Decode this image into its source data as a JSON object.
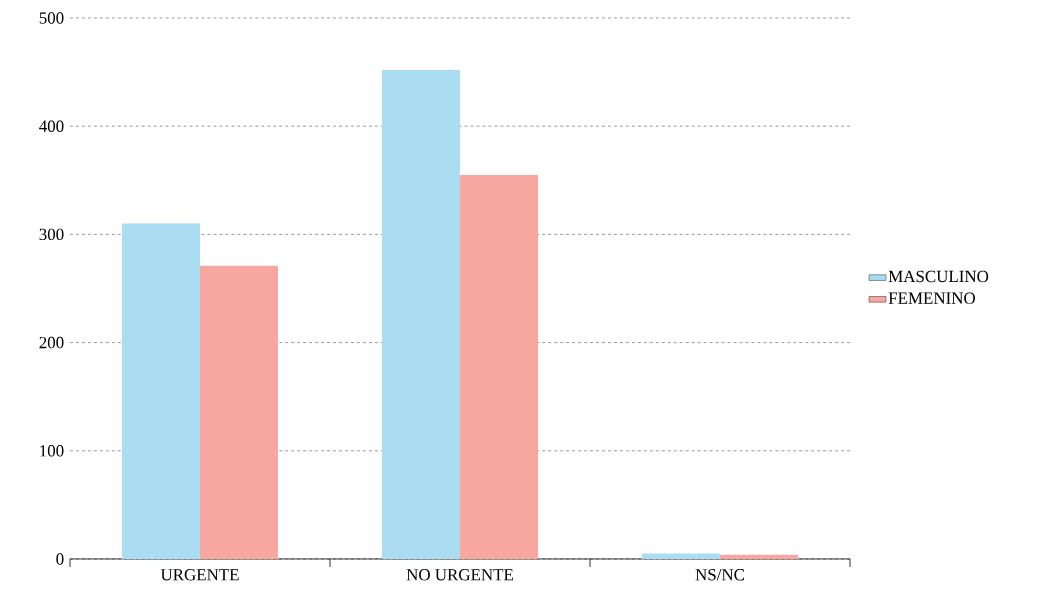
{
  "chart_data": {
    "type": "bar",
    "categories": [
      "URGENTE",
      "NO URGENTE",
      "NS/NC"
    ],
    "series": [
      {
        "name": "MASCULINO",
        "color": "#aadcf2",
        "values": [
          310,
          452,
          5
        ]
      },
      {
        "name": "FEMENINO",
        "color": "#f7a6a0",
        "values": [
          271,
          355,
          4
        ]
      }
    ],
    "ylim": [
      0,
      500
    ],
    "yticks": [
      0,
      100,
      200,
      300,
      400,
      500
    ],
    "grid": "y",
    "legend": "right"
  }
}
